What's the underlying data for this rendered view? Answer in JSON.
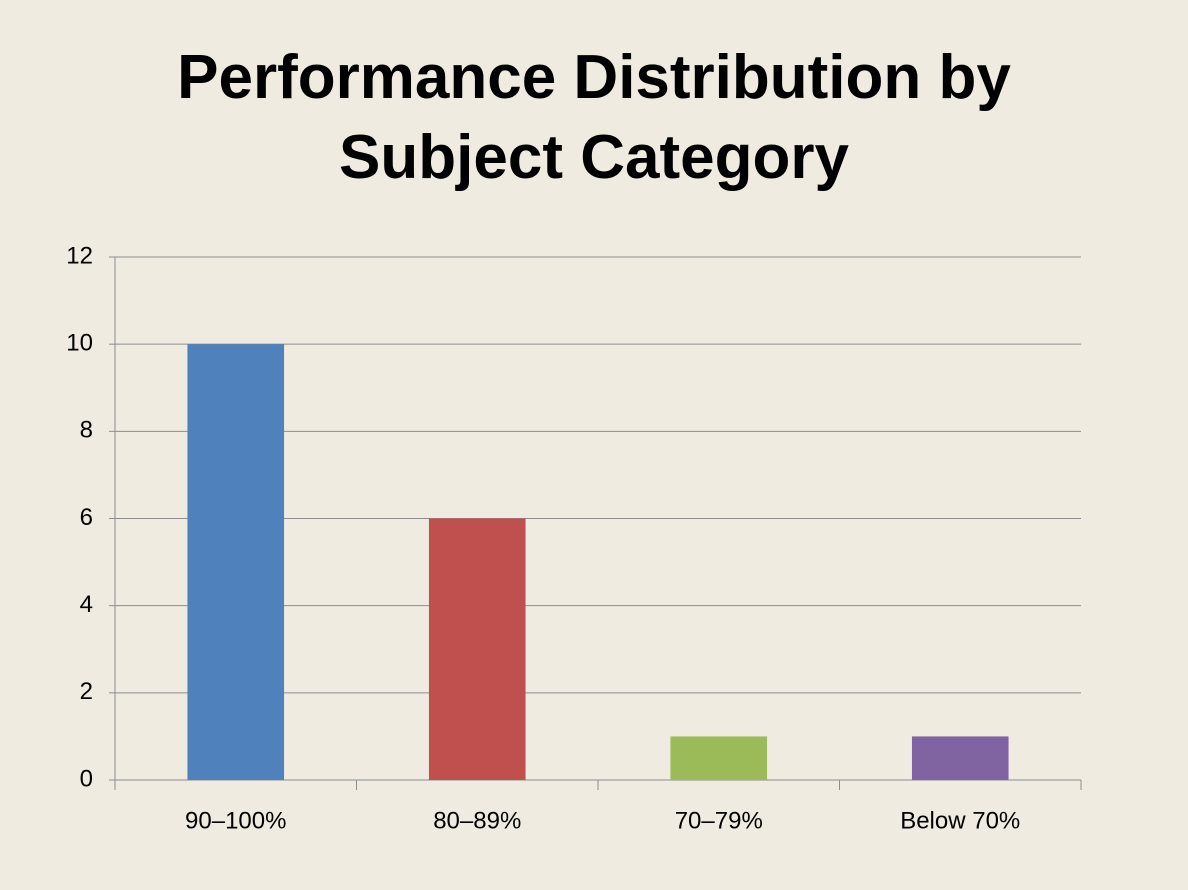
{
  "chart_data": {
    "type": "bar",
    "title": "Performance Distribution by Subject Category",
    "categories": [
      "90–100%",
      "80–89%",
      "70–79%",
      "Below 70%"
    ],
    "values": [
      10,
      6,
      1,
      1
    ],
    "colors": [
      "#4f81bd",
      "#c0504d",
      "#9bbb59",
      "#8064a2"
    ],
    "ylim": [
      0,
      12
    ],
    "yticks": [
      0,
      2,
      4,
      6,
      8,
      10,
      12
    ],
    "grid": true
  }
}
